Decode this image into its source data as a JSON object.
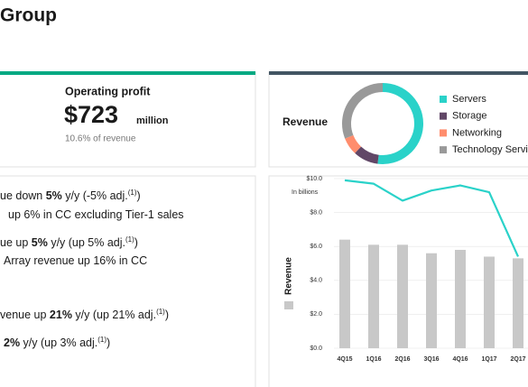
{
  "header": {
    "title": "Group"
  },
  "operating_profit": {
    "label": "Operating profit",
    "value": "$723",
    "unit": "million",
    "note": "10.6% of revenue"
  },
  "revenue_mix": {
    "type": "pie",
    "title": "Revenue",
    "series": [
      {
        "name": "Servers",
        "color": "#2ad2c9",
        "value": 52
      },
      {
        "name": "Storage",
        "color": "#614767",
        "value": 10
      },
      {
        "name": "Networking",
        "color": "#ff8d6d",
        "value": 7
      },
      {
        "name": "Technology Services",
        "color": "#999999",
        "value": 31
      }
    ]
  },
  "bullets": [
    [
      "ue down ",
      "5%",
      " y/y (-5% adj.",
      "(1)",
      ")"
    ],
    [
      "up 6% in CC excluding Tier-1 sales"
    ],
    [
      "ue up ",
      "5%",
      " y/y (up 5% adj.",
      "(1)",
      ")"
    ],
    [
      "Array revenue up 16% in CC"
    ],
    [
      "venue up ",
      "21%",
      " y/y (up 21% adj.",
      "(1)",
      ")"
    ],
    [
      "2%",
      " y/y (up 3% adj.",
      "(1)",
      ")"
    ]
  ],
  "revenue_chart": {
    "type": "bar",
    "unit_label": "In billions",
    "y_label": "Revenue",
    "categories": [
      "4Q15",
      "1Q16",
      "2Q16",
      "3Q16",
      "4Q16",
      "1Q17",
      "2Q17"
    ],
    "bars": {
      "color": "#c8c8c8",
      "values": [
        6.4,
        6.1,
        6.1,
        5.6,
        5.8,
        5.4,
        5.3
      ]
    },
    "line": {
      "color": "#2ad2c9",
      "values": [
        9.9,
        9.7,
        8.7,
        9.3,
        9.6,
        9.2,
        5.4
      ]
    },
    "ylim": [
      0,
      10
    ],
    "yticks": [
      {
        "value": 0,
        "label": "$0.0"
      },
      {
        "value": 2,
        "label": "$2.0"
      },
      {
        "value": 4,
        "label": "$4.0"
      },
      {
        "value": 6,
        "label": "$6.0"
      },
      {
        "value": 8,
        "label": "$8.0"
      },
      {
        "value": 10,
        "label": "$10.0"
      }
    ],
    "grid": true
  }
}
